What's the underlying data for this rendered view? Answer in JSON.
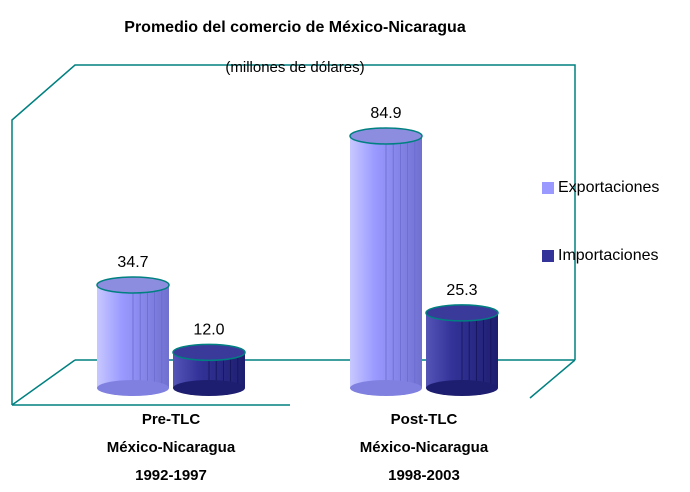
{
  "chart_data": {
    "type": "bar3d",
    "title": "Promedio del comercio de México-Nicaragua",
    "subtitle": "(millones de dólares)",
    "categories": [
      "Pre-TLC\nMéxico-Nicaragua\n1992-1997",
      "Post-TLC\nMéxico-Nicaragua\n1998-2003"
    ],
    "series": [
      {
        "name": "Exportaciones",
        "color": "#9999ff",
        "values": [
          34.7,
          84.9
        ],
        "value_labels": [
          "34.7",
          "84.9"
        ]
      },
      {
        "name": "Importaciones",
        "color": "#333399",
        "values": [
          12.0,
          25.3
        ],
        "value_labels": [
          "12.0",
          "25.3"
        ]
      }
    ],
    "legend": "right"
  }
}
